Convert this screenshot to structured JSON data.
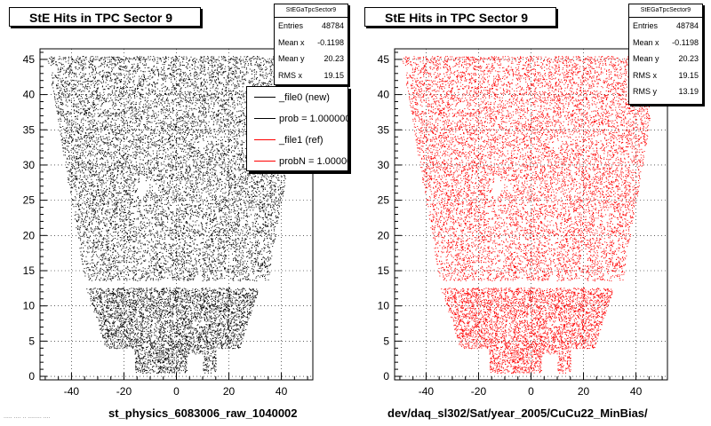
{
  "chart_data": [
    {
      "type": "scatter",
      "title": "StE Hits in TPC Sector 9",
      "xlabel": "st_physics_6083006_raw_1040002",
      "ylabel": "",
      "xlim": [
        -52,
        52
      ],
      "ylim": [
        -0.5,
        46.5
      ],
      "x_ticks": [
        -40,
        -20,
        0,
        20,
        40
      ],
      "y_ticks": [
        0,
        5,
        10,
        15,
        20,
        25,
        30,
        35,
        40,
        45
      ],
      "y_tick_labels": [
        "0",
        "5",
        "10",
        "15",
        "20",
        "25",
        "30",
        "35",
        "40",
        "45"
      ],
      "grid": true,
      "point_color": "#000000",
      "stats": {
        "header": "StEGaTpcSector9",
        "rows": [
          {
            "label": "Entries",
            "value": "48784"
          },
          {
            "label": "Mean x",
            "value": "-0.1198"
          },
          {
            "label": "Mean y",
            "value": "20.23"
          },
          {
            "label": "RMS x",
            "value": "19.15"
          }
        ]
      },
      "legend": {
        "placement": "top-right",
        "entries": [
          {
            "label": "_file0 (new)",
            "color": "#000000"
          },
          {
            "label": "prob = 1.000000",
            "color": "#000000"
          },
          {
            "label": "_file1 (ref)",
            "color": "#ff0000"
          },
          {
            "label": "probN = 1.000000",
            "color": "#ff0000"
          }
        ]
      }
    },
    {
      "type": "scatter",
      "title": "StE Hits in TPC Sector 9",
      "xlabel": "dev/daq_sl302/Sat/year_2005/CuCu22_MinBias/",
      "ylabel": "",
      "xlim": [
        -52,
        52
      ],
      "ylim": [
        -0.5,
        46.5
      ],
      "x_ticks": [
        -40,
        -20,
        0,
        20,
        40
      ],
      "y_ticks": [
        0,
        5,
        10,
        15,
        20,
        25,
        30,
        35,
        40,
        45
      ],
      "y_tick_labels": [
        "0",
        "5",
        "10",
        "15",
        "20",
        "25",
        "30",
        "35",
        "40",
        "45"
      ],
      "grid": true,
      "point_color": "#ff0000",
      "stats": {
        "header": "StEGaTpcSector9",
        "rows": [
          {
            "label": "Entries",
            "value": "48784"
          },
          {
            "label": "Mean x",
            "value": "-0.1198"
          },
          {
            "label": "Mean y",
            "value": "20.23"
          },
          {
            "label": "RMS x",
            "value": "19.15"
          },
          {
            "label": "RMS y",
            "value": "13.19"
          }
        ]
      }
    }
  ],
  "footer_text": "..... .... .. ........ ...."
}
